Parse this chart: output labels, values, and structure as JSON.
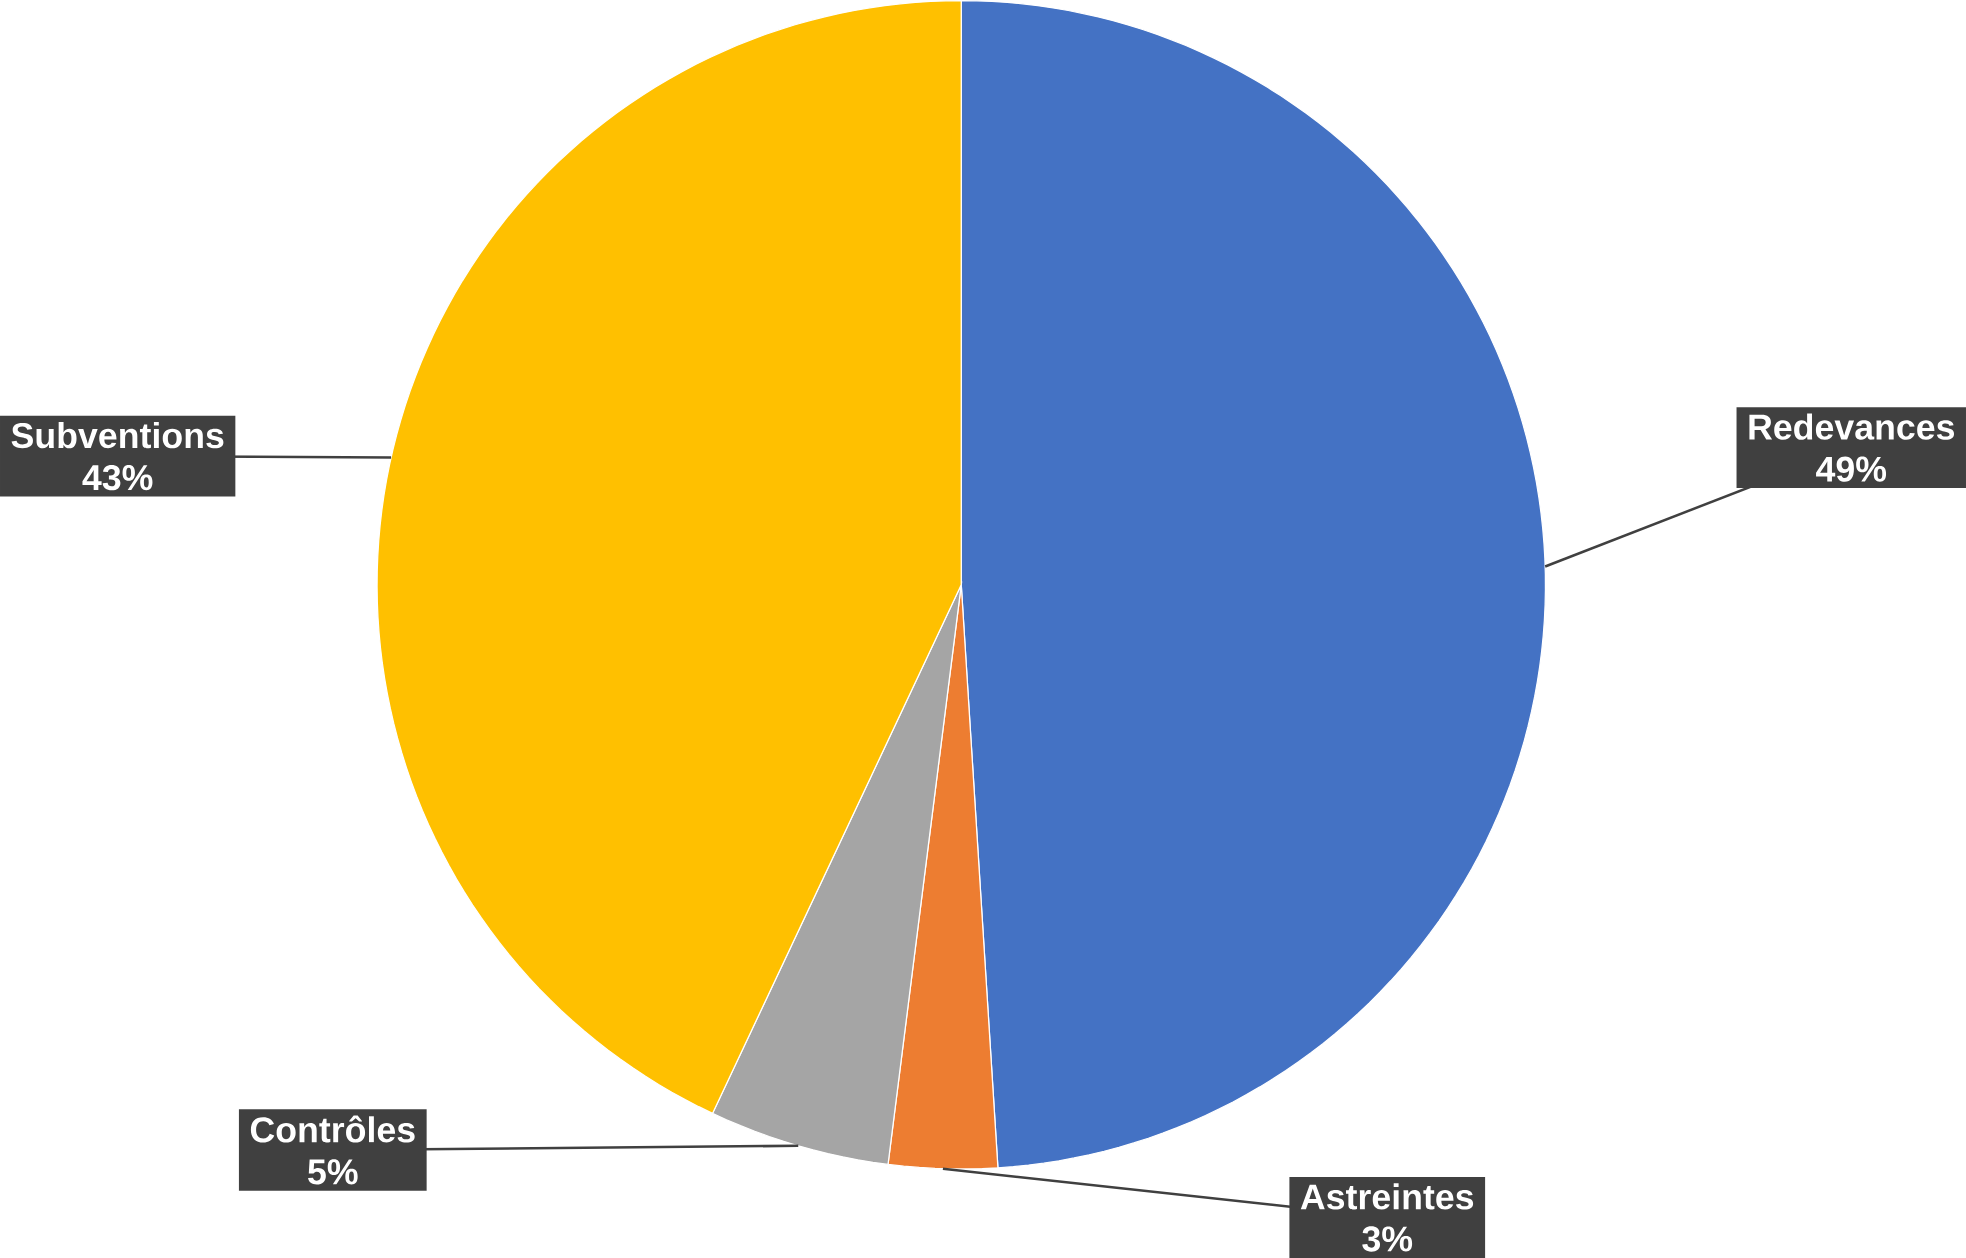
{
  "chart_data": {
    "type": "pie",
    "categories": [
      "Redevances",
      "Astreintes",
      "Contrôles",
      "Subventions"
    ],
    "values": [
      49,
      3,
      5,
      43
    ],
    "value_labels": [
      "49%",
      "3%",
      "5%",
      "43%"
    ],
    "colors": [
      "#4472c4",
      "#ed7d31",
      "#a5a5a5",
      "#ffc000"
    ]
  }
}
